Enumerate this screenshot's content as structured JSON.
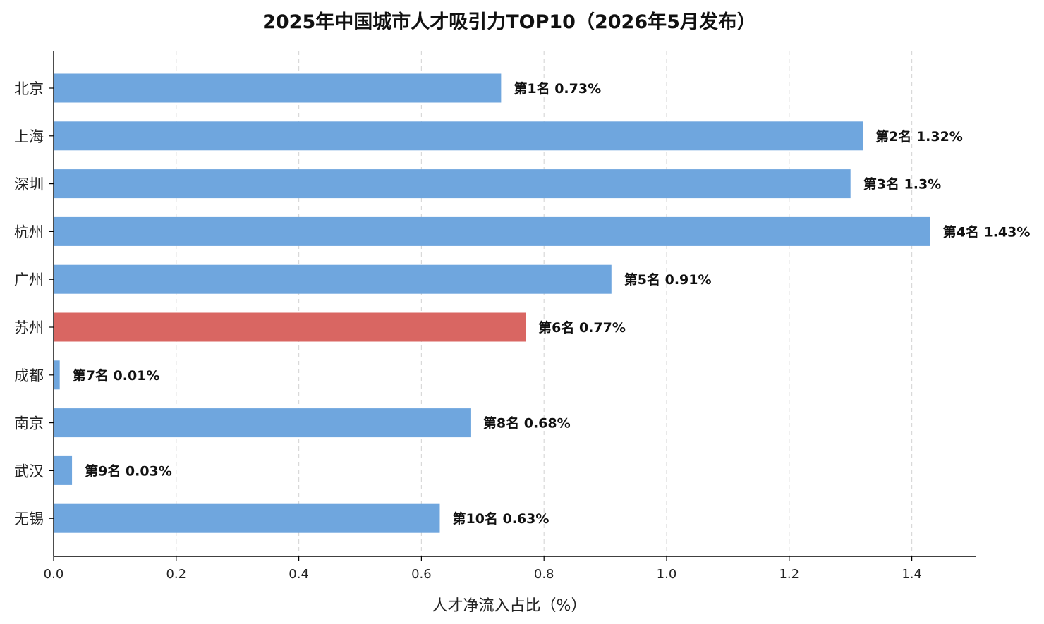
{
  "chart_data": {
    "type": "bar",
    "orientation": "horizontal",
    "title": "2025年中国城市人才吸引力TOP10（2026年5月发布）",
    "xlabel": "人才净流入占比（%）",
    "ylabel": "",
    "xlim": [
      0,
      1.5
    ],
    "xticks": [
      "0.0",
      "0.2",
      "0.4",
      "0.6",
      "0.8",
      "1.0",
      "1.2",
      "1.4"
    ],
    "grid": "x-dashed",
    "categories": [
      "北京",
      "上海",
      "深圳",
      "杭州",
      "广州",
      "苏州",
      "成都",
      "南京",
      "武汉",
      "无锡"
    ],
    "values": [
      0.73,
      1.32,
      1.3,
      1.43,
      0.91,
      0.77,
      0.01,
      0.68,
      0.03,
      0.63
    ],
    "bar_labels": [
      "第1名  0.73%",
      "第2名  1.32%",
      "第3名  1.3%",
      "第4名  1.43%",
      "第5名  0.91%",
      "第6名  0.77%",
      "第7名  0.01%",
      "第8名  0.68%",
      "第9名  0.03%",
      "第10名  0.63%"
    ],
    "colors": {
      "default": "#6fa6de",
      "highlight": "#d96662"
    },
    "highlight_category": "苏州"
  }
}
